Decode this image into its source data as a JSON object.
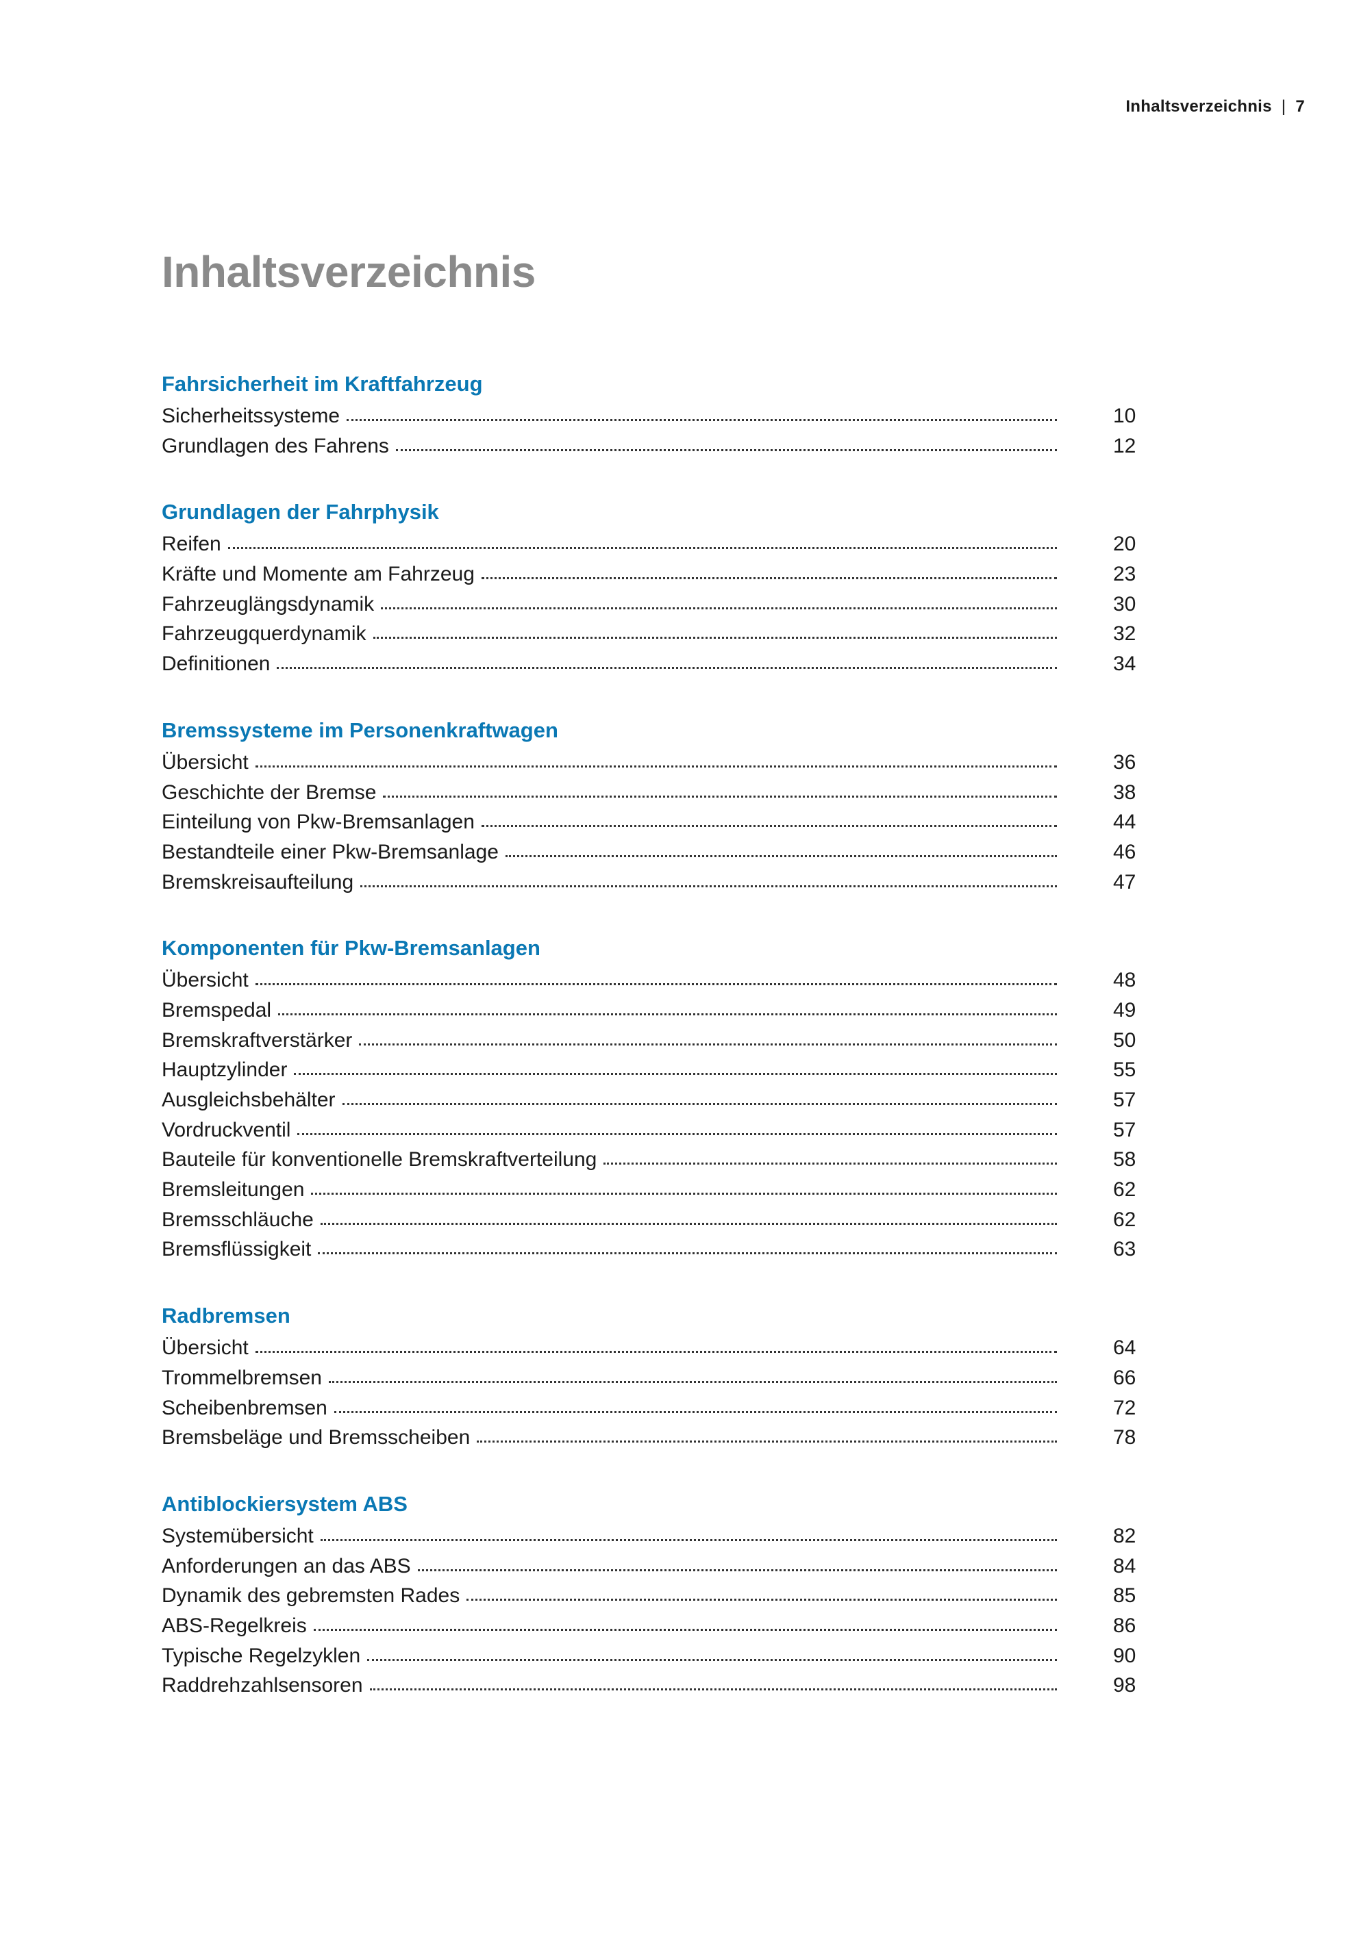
{
  "running_head": {
    "section": "Inhaltsverzeichnis",
    "separator": "|",
    "page": "7"
  },
  "title": "Inhaltsverzeichnis",
  "colors": {
    "heading": "#0a78b4",
    "title": "#8a8a8a",
    "text": "#1a1a1a"
  },
  "sections": [
    {
      "heading": "Fahrsicherheit im Kraftfahrzeug",
      "entries": [
        {
          "label": "Sicherheitssysteme",
          "page": "10"
        },
        {
          "label": "Grundlagen des Fahrens",
          "page": "12"
        }
      ]
    },
    {
      "heading": "Grundlagen der Fahrphysik",
      "entries": [
        {
          "label": "Reifen",
          "page": "20"
        },
        {
          "label": "Kräfte und Momente am Fahrzeug",
          "page": "23"
        },
        {
          "label": "Fahrzeuglängsdynamik",
          "page": "30"
        },
        {
          "label": "Fahrzeugquerdynamik",
          "page": "32"
        },
        {
          "label": "Definitionen",
          "page": "34"
        }
      ]
    },
    {
      "heading": "Bremssysteme im Personenkraftwagen",
      "entries": [
        {
          "label": "Übersicht",
          "page": "36"
        },
        {
          "label": "Geschichte der Bremse",
          "page": "38"
        },
        {
          "label": "Einteilung von Pkw-Bremsanlagen",
          "page": "44"
        },
        {
          "label": "Bestandteile einer Pkw-Bremsanlage",
          "page": "46"
        },
        {
          "label": "Bremskreisaufteilung",
          "page": "47"
        }
      ]
    },
    {
      "heading": "Komponenten für Pkw-Bremsanlagen",
      "entries": [
        {
          "label": "Übersicht",
          "page": "48"
        },
        {
          "label": "Bremspedal",
          "page": "49"
        },
        {
          "label": "Bremskraftverstärker",
          "page": "50"
        },
        {
          "label": "Hauptzylinder",
          "page": "55"
        },
        {
          "label": "Ausgleichsbehälter",
          "page": "57"
        },
        {
          "label": "Vordruckventil",
          "page": "57"
        },
        {
          "label": "Bauteile für konventionelle Bremskraftverteilung",
          "page": "58"
        },
        {
          "label": "Bremsleitungen",
          "page": "62"
        },
        {
          "label": "Bremsschläuche",
          "page": "62"
        },
        {
          "label": "Bremsflüssigkeit",
          "page": "63"
        }
      ]
    },
    {
      "heading": "Radbremsen",
      "entries": [
        {
          "label": "Übersicht",
          "page": "64"
        },
        {
          "label": "Trommelbremsen",
          "page": "66"
        },
        {
          "label": "Scheibenbremsen",
          "page": "72"
        },
        {
          "label": "Bremsbeläge und Bremsscheiben",
          "page": "78"
        }
      ]
    },
    {
      "heading": "Antiblockiersystem ABS",
      "entries": [
        {
          "label": "Systemübersicht",
          "page": "82"
        },
        {
          "label": "Anforderungen an das ABS",
          "page": "84"
        },
        {
          "label": "Dynamik des gebremsten Rades",
          "page": "85"
        },
        {
          "label": "ABS-Regelkreis",
          "page": "86"
        },
        {
          "label": "Typische Regelzyklen",
          "page": "90"
        },
        {
          "label": "Raddrehzahlsensoren",
          "page": "98"
        }
      ]
    }
  ]
}
